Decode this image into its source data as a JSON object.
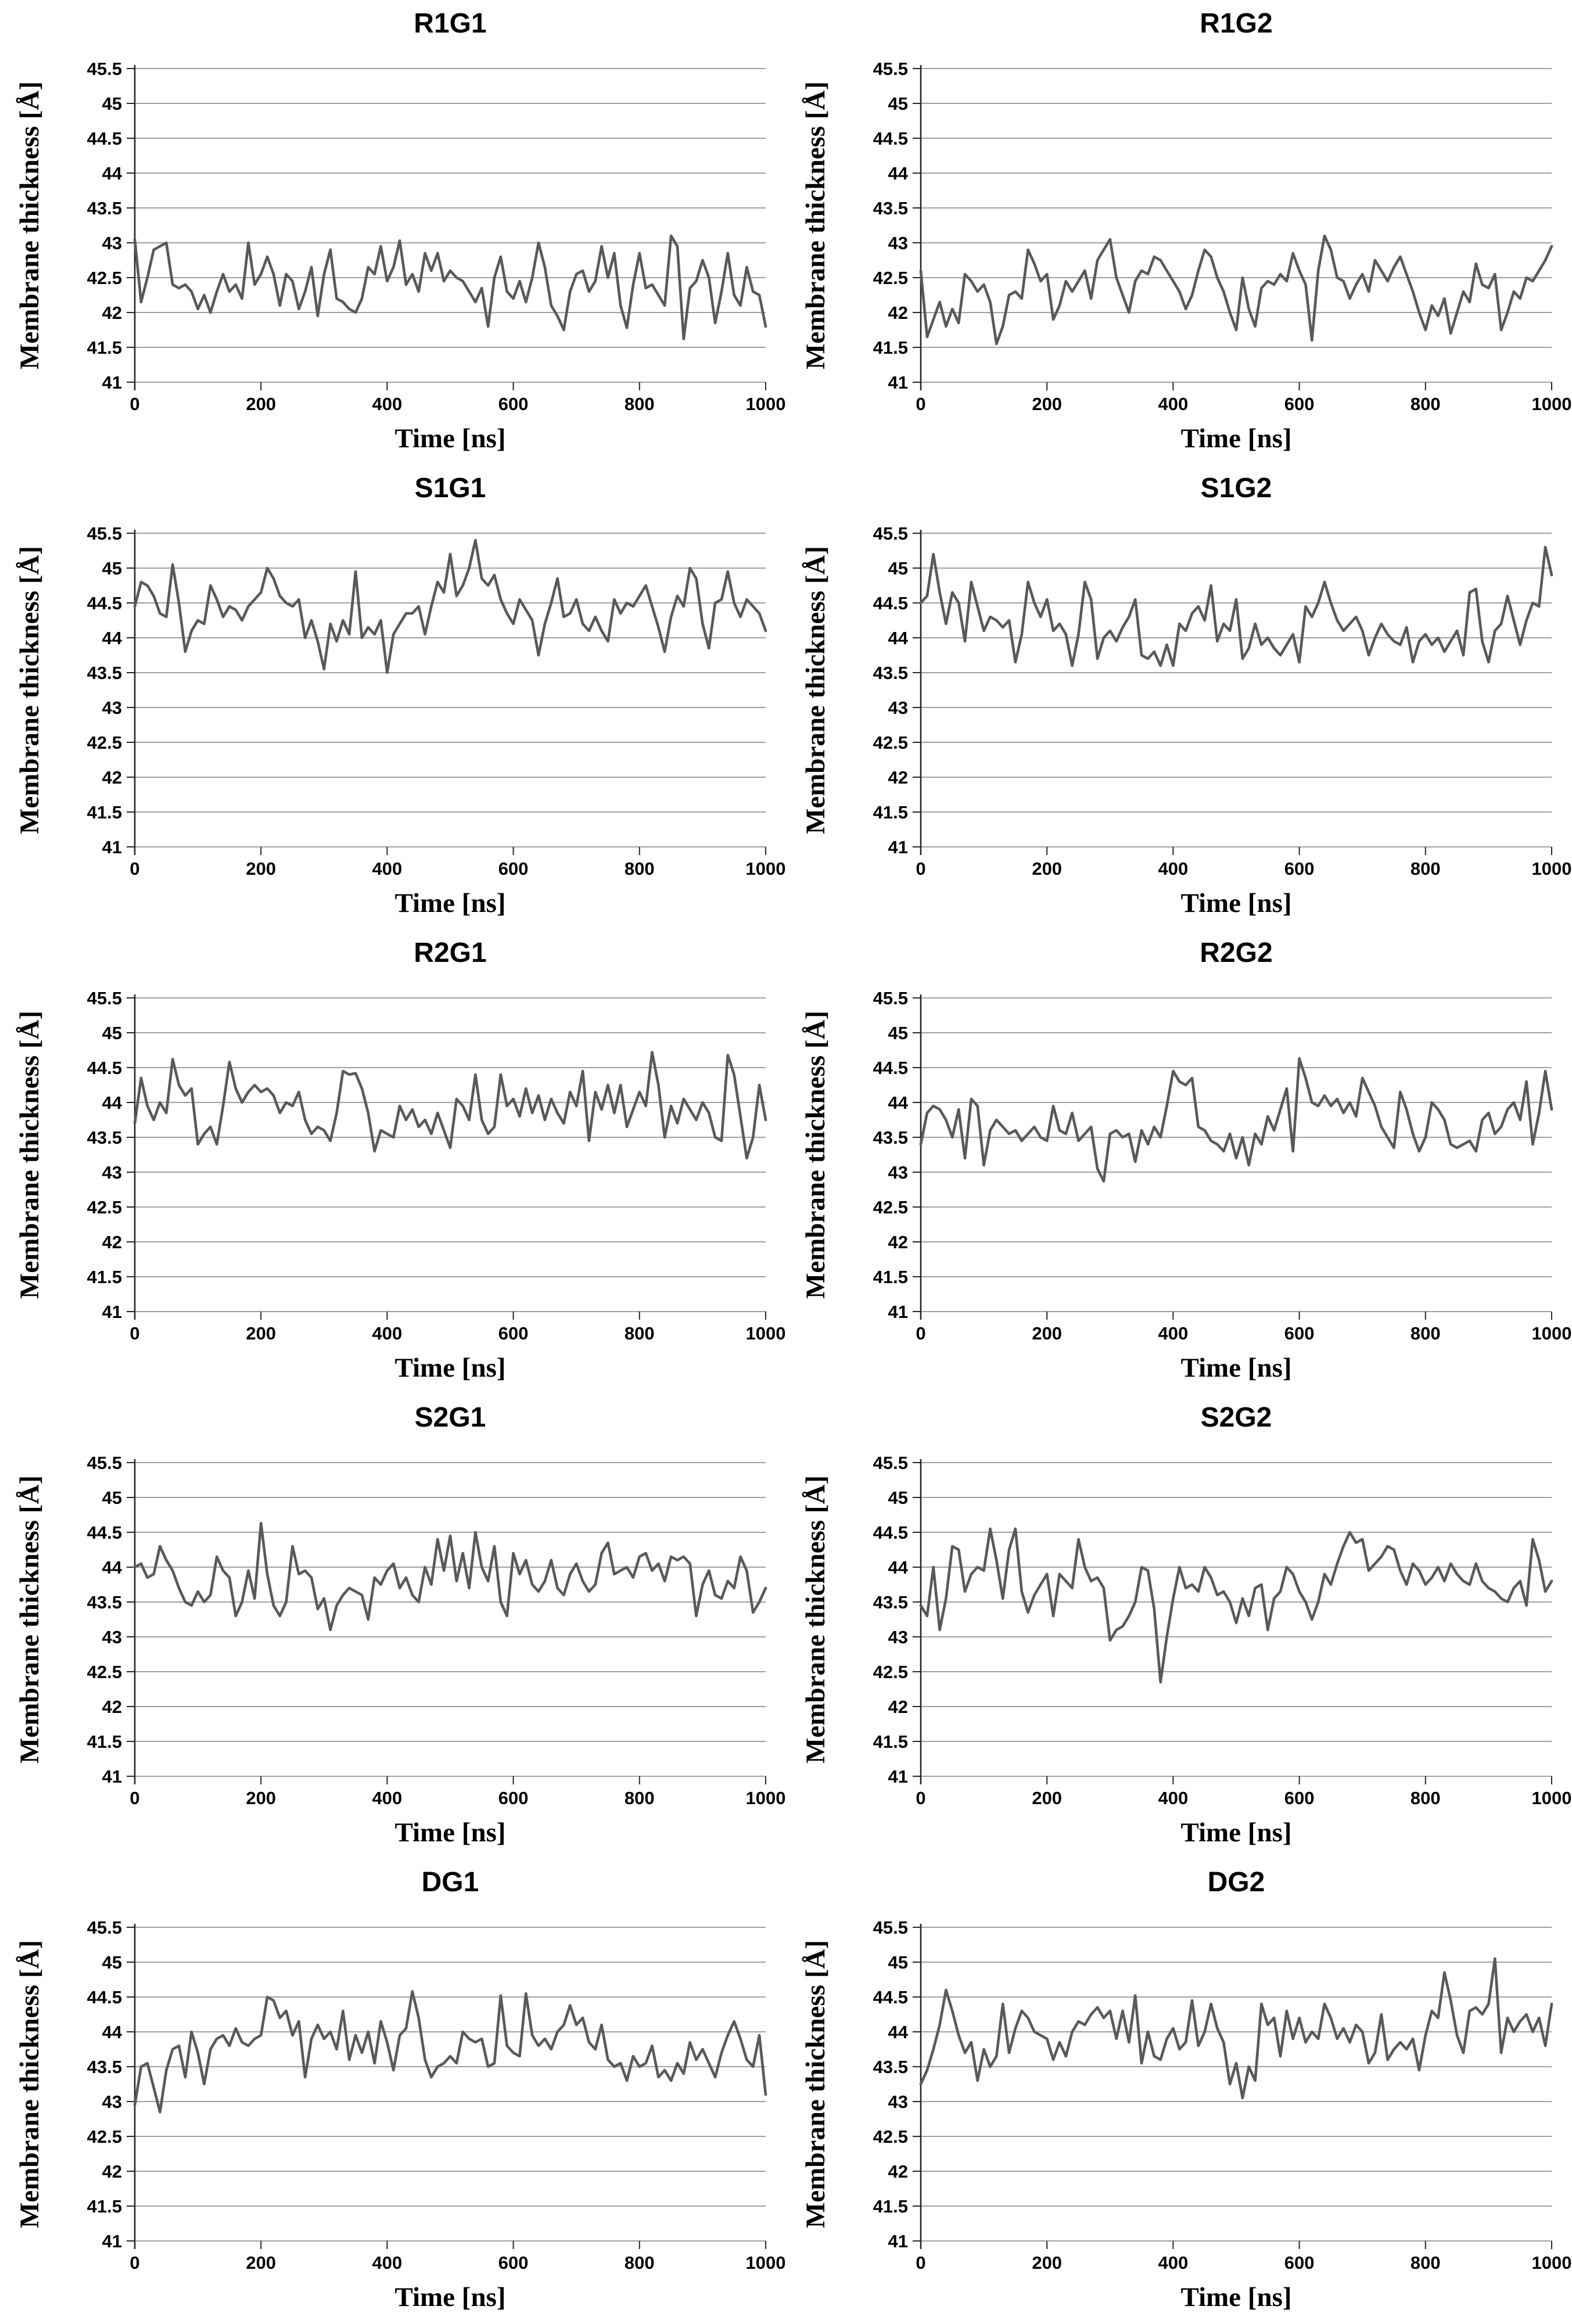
{
  "axes": {
    "ylabel": "Membrane thickness [Å]",
    "xlabel": "Time [ns]",
    "ylim": [
      41,
      45.5
    ],
    "xlim": [
      0,
      1000
    ],
    "y_ticks": [
      41,
      41.5,
      42,
      42.5,
      43,
      43.5,
      44,
      44.5,
      45,
      45.5
    ],
    "x_ticks": [
      0,
      200,
      400,
      600,
      800,
      1000
    ],
    "grid": "horizontal-only",
    "legend": "none"
  },
  "style": {
    "line_color": "#595959",
    "grid_color": "#808080",
    "axis_color": "#262626",
    "text_color": "#000000",
    "background": "#ffffff"
  },
  "chart_data": [
    {
      "type": "line",
      "title": "R1G1",
      "xlabel": "Time [ns]",
      "ylabel": "Membrane thickness [Å]",
      "x_start": 0,
      "x_step": 10,
      "values": [
        43.05,
        42.15,
        42.5,
        42.9,
        42.95,
        43.0,
        42.4,
        42.35,
        42.4,
        42.3,
        42.05,
        42.25,
        42.0,
        42.3,
        42.55,
        42.3,
        42.4,
        42.2,
        43.0,
        42.4,
        42.55,
        42.8,
        42.55,
        42.1,
        42.55,
        42.45,
        42.05,
        42.3,
        42.65,
        41.95,
        42.55,
        42.9,
        42.2,
        42.15,
        42.05,
        42.0,
        42.2,
        42.65,
        42.55,
        42.95,
        42.45,
        42.65,
        43.03,
        42.4,
        42.55,
        42.3,
        42.85,
        42.6,
        42.85,
        42.45,
        42.6,
        42.5,
        42.45,
        42.3,
        42.15,
        42.35,
        41.8,
        42.5,
        42.8,
        42.3,
        42.2,
        42.45,
        42.15,
        42.5,
        43.0,
        42.65,
        42.1,
        41.95,
        41.75,
        42.3,
        42.55,
        42.6,
        42.3,
        42.45,
        42.95,
        42.5,
        42.85,
        42.1,
        41.78,
        42.4,
        42.85,
        42.35,
        42.4,
        42.25,
        42.1,
        43.1,
        42.95,
        41.62,
        42.35,
        42.45,
        42.75,
        42.5,
        41.85,
        42.3,
        42.85,
        42.25,
        42.1,
        42.65,
        42.3,
        42.25,
        41.8
      ]
    },
    {
      "type": "line",
      "title": "R1G2",
      "xlabel": "Time [ns]",
      "ylabel": "Membrane thickness [Å]",
      "x_start": 0,
      "x_step": 10,
      "values": [
        42.6,
        41.65,
        41.9,
        42.15,
        41.8,
        42.05,
        41.85,
        42.55,
        42.45,
        42.3,
        42.4,
        42.15,
        41.55,
        41.8,
        42.25,
        42.3,
        42.2,
        42.9,
        42.7,
        42.45,
        42.55,
        41.9,
        42.1,
        42.45,
        42.3,
        42.45,
        42.6,
        42.2,
        42.75,
        42.9,
        43.05,
        42.5,
        42.25,
        42.0,
        42.45,
        42.6,
        42.55,
        42.8,
        42.75,
        42.6,
        42.45,
        42.3,
        42.05,
        42.25,
        42.6,
        42.9,
        42.8,
        42.5,
        42.3,
        42.0,
        41.75,
        42.5,
        42.05,
        41.8,
        42.35,
        42.45,
        42.4,
        42.55,
        42.45,
        42.85,
        42.6,
        42.4,
        41.6,
        42.6,
        43.1,
        42.9,
        42.5,
        42.45,
        42.2,
        42.4,
        42.55,
        42.3,
        42.75,
        42.6,
        42.45,
        42.65,
        42.8,
        42.55,
        42.3,
        42.0,
        41.75,
        42.1,
        41.95,
        42.2,
        41.7,
        42.0,
        42.3,
        42.15,
        42.7,
        42.4,
        42.35,
        42.55,
        41.75,
        42.0,
        42.3,
        42.2,
        42.5,
        42.45,
        42.6,
        42.75,
        42.95
      ]
    },
    {
      "type": "line",
      "title": "S1G1",
      "xlabel": "Time [ns]",
      "ylabel": "Membrane thickness [Å]",
      "x_start": 0,
      "x_step": 10,
      "values": [
        44.45,
        44.8,
        44.75,
        44.6,
        44.35,
        44.3,
        45.05,
        44.5,
        43.8,
        44.1,
        44.25,
        44.2,
        44.75,
        44.55,
        44.3,
        44.45,
        44.4,
        44.25,
        44.45,
        44.55,
        44.65,
        45.0,
        44.85,
        44.6,
        44.5,
        44.45,
        44.55,
        44.0,
        44.25,
        43.95,
        43.55,
        44.2,
        43.95,
        44.25,
        44.05,
        44.95,
        44.0,
        44.15,
        44.05,
        44.25,
        43.5,
        44.05,
        44.2,
        44.35,
        44.35,
        44.45,
        44.05,
        44.45,
        44.8,
        44.65,
        45.2,
        44.6,
        44.75,
        45.0,
        45.4,
        44.85,
        44.75,
        44.9,
        44.55,
        44.35,
        44.2,
        44.55,
        44.4,
        44.25,
        43.75,
        44.2,
        44.5,
        44.85,
        44.3,
        44.35,
        44.55,
        44.2,
        44.1,
        44.3,
        44.1,
        43.95,
        44.55,
        44.35,
        44.5,
        44.45,
        44.6,
        44.75,
        44.45,
        44.15,
        43.8,
        44.3,
        44.6,
        44.45,
        45.0,
        44.85,
        44.2,
        43.85,
        44.5,
        44.55,
        44.95,
        44.5,
        44.3,
        44.55,
        44.45,
        44.35,
        44.1
      ]
    },
    {
      "type": "line",
      "title": "S1G2",
      "xlabel": "Time [ns]",
      "ylabel": "Membrane thickness [Å]",
      "x_start": 0,
      "x_step": 10,
      "values": [
        44.5,
        44.6,
        45.2,
        44.65,
        44.2,
        44.65,
        44.5,
        43.95,
        44.8,
        44.45,
        44.1,
        44.3,
        44.25,
        44.15,
        44.25,
        43.65,
        44.05,
        44.8,
        44.5,
        44.3,
        44.55,
        44.1,
        44.2,
        44.05,
        43.6,
        44.05,
        44.8,
        44.55,
        43.7,
        44.0,
        44.1,
        43.95,
        44.15,
        44.3,
        44.55,
        43.75,
        43.7,
        43.8,
        43.6,
        43.9,
        43.6,
        44.2,
        44.1,
        44.35,
        44.45,
        44.25,
        44.75,
        43.95,
        44.2,
        44.1,
        44.55,
        43.7,
        43.85,
        44.2,
        43.9,
        44.0,
        43.85,
        43.75,
        43.9,
        44.05,
        43.65,
        44.45,
        44.3,
        44.5,
        44.8,
        44.5,
        44.25,
        44.1,
        44.2,
        44.3,
        44.1,
        43.75,
        44.0,
        44.2,
        44.05,
        43.95,
        43.9,
        44.15,
        43.65,
        43.95,
        44.05,
        43.9,
        44.0,
        43.8,
        43.95,
        44.1,
        43.75,
        44.65,
        44.7,
        43.95,
        43.65,
        44.1,
        44.2,
        44.6,
        44.25,
        43.9,
        44.25,
        44.5,
        44.45,
        45.3,
        44.9
      ]
    },
    {
      "type": "line",
      "title": "R2G1",
      "xlabel": "Time [ns]",
      "ylabel": "Membrane thickness [Å]",
      "x_start": 0,
      "x_step": 10,
      "values": [
        43.7,
        44.35,
        43.95,
        43.75,
        44.0,
        43.85,
        44.62,
        44.25,
        44.1,
        44.2,
        43.4,
        43.55,
        43.65,
        43.4,
        43.95,
        44.58,
        44.2,
        44.0,
        44.15,
        44.25,
        44.15,
        44.2,
        44.1,
        43.85,
        44.0,
        43.95,
        44.15,
        43.75,
        43.55,
        43.65,
        43.6,
        43.45,
        43.85,
        44.45,
        44.4,
        44.42,
        44.2,
        43.85,
        43.3,
        43.6,
        43.55,
        43.5,
        43.95,
        43.75,
        43.9,
        43.65,
        43.75,
        43.55,
        43.85,
        43.6,
        43.35,
        44.05,
        43.95,
        43.75,
        44.4,
        43.75,
        43.55,
        43.65,
        44.4,
        43.95,
        44.05,
        43.8,
        44.2,
        43.85,
        44.1,
        43.75,
        44.05,
        43.85,
        43.7,
        44.15,
        43.95,
        44.45,
        43.45,
        44.15,
        43.9,
        44.25,
        43.85,
        44.25,
        43.65,
        43.9,
        44.15,
        43.95,
        44.72,
        44.25,
        43.5,
        43.95,
        43.7,
        44.05,
        43.9,
        43.75,
        44.0,
        43.85,
        43.5,
        43.45,
        44.68,
        44.4,
        43.8,
        43.2,
        43.5,
        44.25,
        43.75
      ]
    },
    {
      "type": "line",
      "title": "R2G2",
      "xlabel": "Time [ns]",
      "ylabel": "Membrane thickness [Å]",
      "x_start": 0,
      "x_step": 10,
      "values": [
        43.4,
        43.85,
        43.95,
        43.9,
        43.75,
        43.5,
        43.9,
        43.2,
        44.05,
        43.95,
        43.1,
        43.6,
        43.75,
        43.65,
        43.55,
        43.6,
        43.45,
        43.55,
        43.65,
        43.5,
        43.45,
        43.95,
        43.6,
        43.55,
        43.85,
        43.45,
        43.55,
        43.65,
        43.05,
        42.87,
        43.55,
        43.6,
        43.5,
        43.55,
        43.15,
        43.6,
        43.4,
        43.65,
        43.5,
        43.95,
        44.45,
        44.3,
        44.25,
        44.35,
        43.65,
        43.6,
        43.45,
        43.4,
        43.3,
        43.55,
        43.2,
        43.5,
        43.1,
        43.55,
        43.4,
        43.8,
        43.6,
        43.9,
        44.2,
        43.3,
        44.63,
        44.35,
        44.0,
        43.95,
        44.1,
        43.95,
        44.05,
        43.85,
        44.0,
        43.8,
        44.35,
        44.15,
        43.95,
        43.65,
        43.5,
        43.35,
        44.15,
        43.9,
        43.55,
        43.3,
        43.5,
        44.0,
        43.9,
        43.75,
        43.4,
        43.35,
        43.4,
        43.45,
        43.3,
        43.75,
        43.85,
        43.55,
        43.65,
        43.9,
        44.0,
        43.75,
        44.3,
        43.4,
        43.85,
        44.45,
        43.9
      ]
    },
    {
      "type": "line",
      "title": "S2G1",
      "xlabel": "Time [ns]",
      "ylabel": "Membrane thickness [Å]",
      "x_start": 0,
      "x_step": 10,
      "values": [
        44.0,
        44.05,
        43.85,
        43.9,
        44.3,
        44.1,
        43.95,
        43.7,
        43.5,
        43.45,
        43.65,
        43.5,
        43.6,
        44.15,
        43.95,
        43.85,
        43.3,
        43.5,
        43.95,
        43.55,
        44.63,
        43.9,
        43.45,
        43.3,
        43.5,
        44.3,
        43.9,
        43.95,
        43.85,
        43.4,
        43.55,
        43.1,
        43.45,
        43.6,
        43.7,
        43.65,
        43.6,
        43.25,
        43.85,
        43.75,
        43.95,
        44.05,
        43.7,
        43.85,
        43.6,
        43.5,
        44.0,
        43.75,
        44.4,
        43.95,
        44.45,
        43.8,
        44.2,
        43.7,
        44.5,
        44.0,
        43.8,
        44.3,
        43.5,
        43.3,
        44.2,
        43.9,
        44.1,
        43.75,
        43.65,
        43.8,
        44.1,
        43.7,
        43.6,
        43.9,
        44.05,
        43.8,
        43.65,
        43.75,
        44.2,
        44.35,
        43.9,
        43.95,
        44.0,
        43.85,
        44.15,
        44.2,
        43.95,
        44.05,
        43.8,
        44.15,
        44.1,
        44.15,
        44.05,
        43.3,
        43.75,
        43.95,
        43.6,
        43.55,
        43.8,
        43.7,
        44.15,
        43.95,
        43.35,
        43.5,
        43.7
      ]
    },
    {
      "type": "line",
      "title": "S2G2",
      "xlabel": "Time [ns]",
      "ylabel": "Membrane thickness [Å]",
      "x_start": 0,
      "x_step": 10,
      "values": [
        43.45,
        43.3,
        44.0,
        43.1,
        43.55,
        44.3,
        44.25,
        43.65,
        43.9,
        44.0,
        43.95,
        44.55,
        44.1,
        43.55,
        44.25,
        44.55,
        43.65,
        43.35,
        43.6,
        43.75,
        43.9,
        43.3,
        43.9,
        43.8,
        43.7,
        44.4,
        44.0,
        43.8,
        43.85,
        43.7,
        42.95,
        43.1,
        43.15,
        43.3,
        43.5,
        44.0,
        43.95,
        43.4,
        42.35,
        43.0,
        43.55,
        44.0,
        43.7,
        43.75,
        43.65,
        44.0,
        43.85,
        43.6,
        43.65,
        43.5,
        43.2,
        43.55,
        43.3,
        43.7,
        43.75,
        43.1,
        43.55,
        43.65,
        44.0,
        43.9,
        43.65,
        43.5,
        43.25,
        43.5,
        43.9,
        43.75,
        44.05,
        44.3,
        44.5,
        44.35,
        44.4,
        43.95,
        44.05,
        44.15,
        44.3,
        44.25,
        43.95,
        43.75,
        44.05,
        43.95,
        43.75,
        43.85,
        44.0,
        43.8,
        44.05,
        43.9,
        43.8,
        43.75,
        44.05,
        43.8,
        43.7,
        43.65,
        43.55,
        43.5,
        43.7,
        43.8,
        43.45,
        44.4,
        44.1,
        43.65,
        43.8
      ]
    },
    {
      "type": "line",
      "title": "DG1",
      "xlabel": "Time [ns]",
      "ylabel": "Membrane thickness [Å]",
      "x_start": 0,
      "x_step": 10,
      "values": [
        42.95,
        43.5,
        43.55,
        43.2,
        42.85,
        43.45,
        43.75,
        43.8,
        43.35,
        44.0,
        43.7,
        43.25,
        43.75,
        43.9,
        43.95,
        43.8,
        44.05,
        43.85,
        43.8,
        43.9,
        43.95,
        44.5,
        44.45,
        44.2,
        44.3,
        43.95,
        44.15,
        43.35,
        43.9,
        44.1,
        43.9,
        44.0,
        43.75,
        44.3,
        43.6,
        43.95,
        43.7,
        44.0,
        43.55,
        44.15,
        43.85,
        43.45,
        43.95,
        44.05,
        44.58,
        44.2,
        43.6,
        43.35,
        43.5,
        43.55,
        43.65,
        43.55,
        44.0,
        43.9,
        43.85,
        43.9,
        43.5,
        43.55,
        44.52,
        43.8,
        43.7,
        43.65,
        44.55,
        43.95,
        43.8,
        43.9,
        43.75,
        44.0,
        44.1,
        44.38,
        44.1,
        44.2,
        43.85,
        43.75,
        44.1,
        43.6,
        43.5,
        43.55,
        43.3,
        43.65,
        43.5,
        43.55,
        43.8,
        43.35,
        43.45,
        43.3,
        43.55,
        43.4,
        43.85,
        43.6,
        43.75,
        43.55,
        43.35,
        43.7,
        43.95,
        44.15,
        43.9,
        43.6,
        43.5,
        43.95,
        43.1
      ]
    },
    {
      "type": "line",
      "title": "DG2",
      "xlabel": "Time [ns]",
      "ylabel": "Membrane thickness [Å]",
      "x_start": 0,
      "x_step": 10,
      "values": [
        43.25,
        43.45,
        43.75,
        44.1,
        44.6,
        44.3,
        43.95,
        43.7,
        43.85,
        43.3,
        43.75,
        43.5,
        43.65,
        44.4,
        43.7,
        44.05,
        44.3,
        44.2,
        44.0,
        43.95,
        43.9,
        43.6,
        43.85,
        43.65,
        44.0,
        44.15,
        44.1,
        44.25,
        44.35,
        44.2,
        44.3,
        43.9,
        44.3,
        43.85,
        44.52,
        43.55,
        44.0,
        43.65,
        43.6,
        43.9,
        44.05,
        43.75,
        43.85,
        44.45,
        43.8,
        44.0,
        44.4,
        44.05,
        43.85,
        43.25,
        43.55,
        43.05,
        43.5,
        43.3,
        44.4,
        44.1,
        44.2,
        43.65,
        44.3,
        43.9,
        44.2,
        43.85,
        44.0,
        43.9,
        44.4,
        44.2,
        43.9,
        44.05,
        43.85,
        44.1,
        44.0,
        43.55,
        43.7,
        44.25,
        43.6,
        43.75,
        43.85,
        43.75,
        43.9,
        43.45,
        43.95,
        44.3,
        44.2,
        44.85,
        44.45,
        43.95,
        43.7,
        44.3,
        44.35,
        44.25,
        44.4,
        45.05,
        43.7,
        44.2,
        44.0,
        44.15,
        44.25,
        44.0,
        44.2,
        43.8,
        44.4
      ]
    }
  ]
}
